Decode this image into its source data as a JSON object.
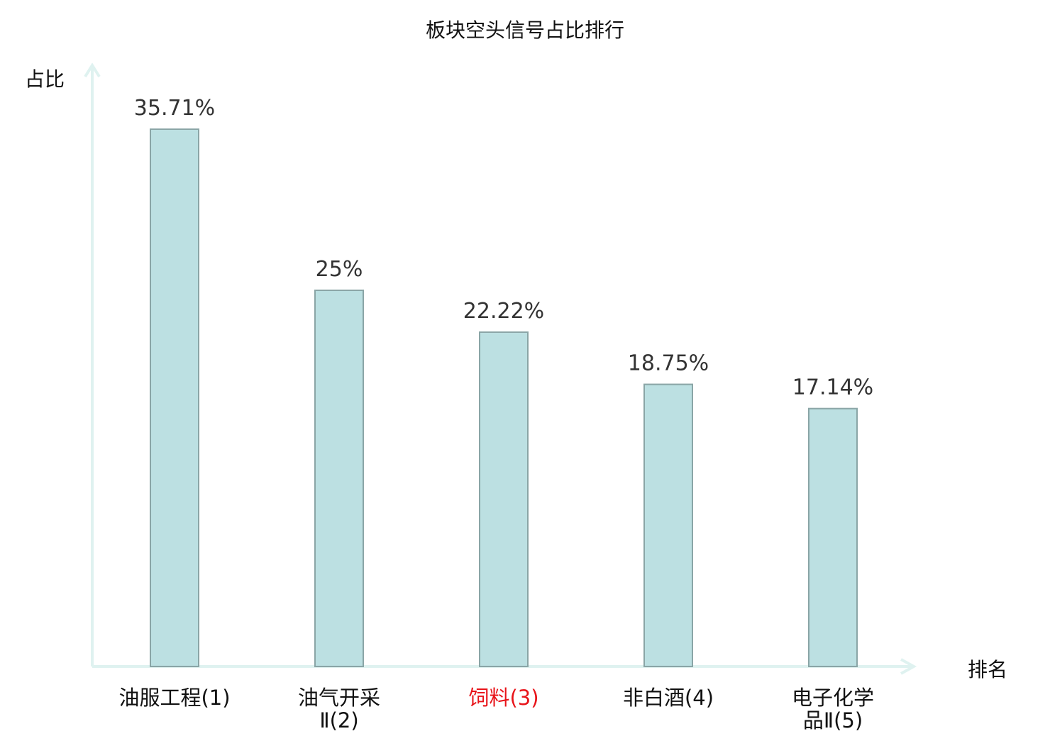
{
  "chart_data": {
    "type": "bar",
    "title": "板块空头信号占比排行",
    "xlabel": "排名",
    "ylabel": "占比",
    "categories": [
      [
        "油服工程(1)"
      ],
      [
        "油气开采",
        "Ⅱ(2)"
      ],
      [
        "饲料(3)"
      ],
      [
        "非白酒(4)"
      ],
      [
        "电子化学",
        "品Ⅱ(5)"
      ]
    ],
    "values": [
      35.71,
      25,
      22.22,
      18.75,
      17.14
    ],
    "data_labels": [
      "35.71%",
      "25%",
      "22.22%",
      "18.75%",
      "17.14%"
    ],
    "highlight_index": 2,
    "ylim": [
      0,
      40
    ],
    "grid": false,
    "legend": "none",
    "colors": {
      "bar_fill": "#bce0e2",
      "bar_stroke": "#8aa5a6",
      "axis": "#dff2f0",
      "highlight_label": "#e8141a",
      "text": "#333333"
    }
  }
}
